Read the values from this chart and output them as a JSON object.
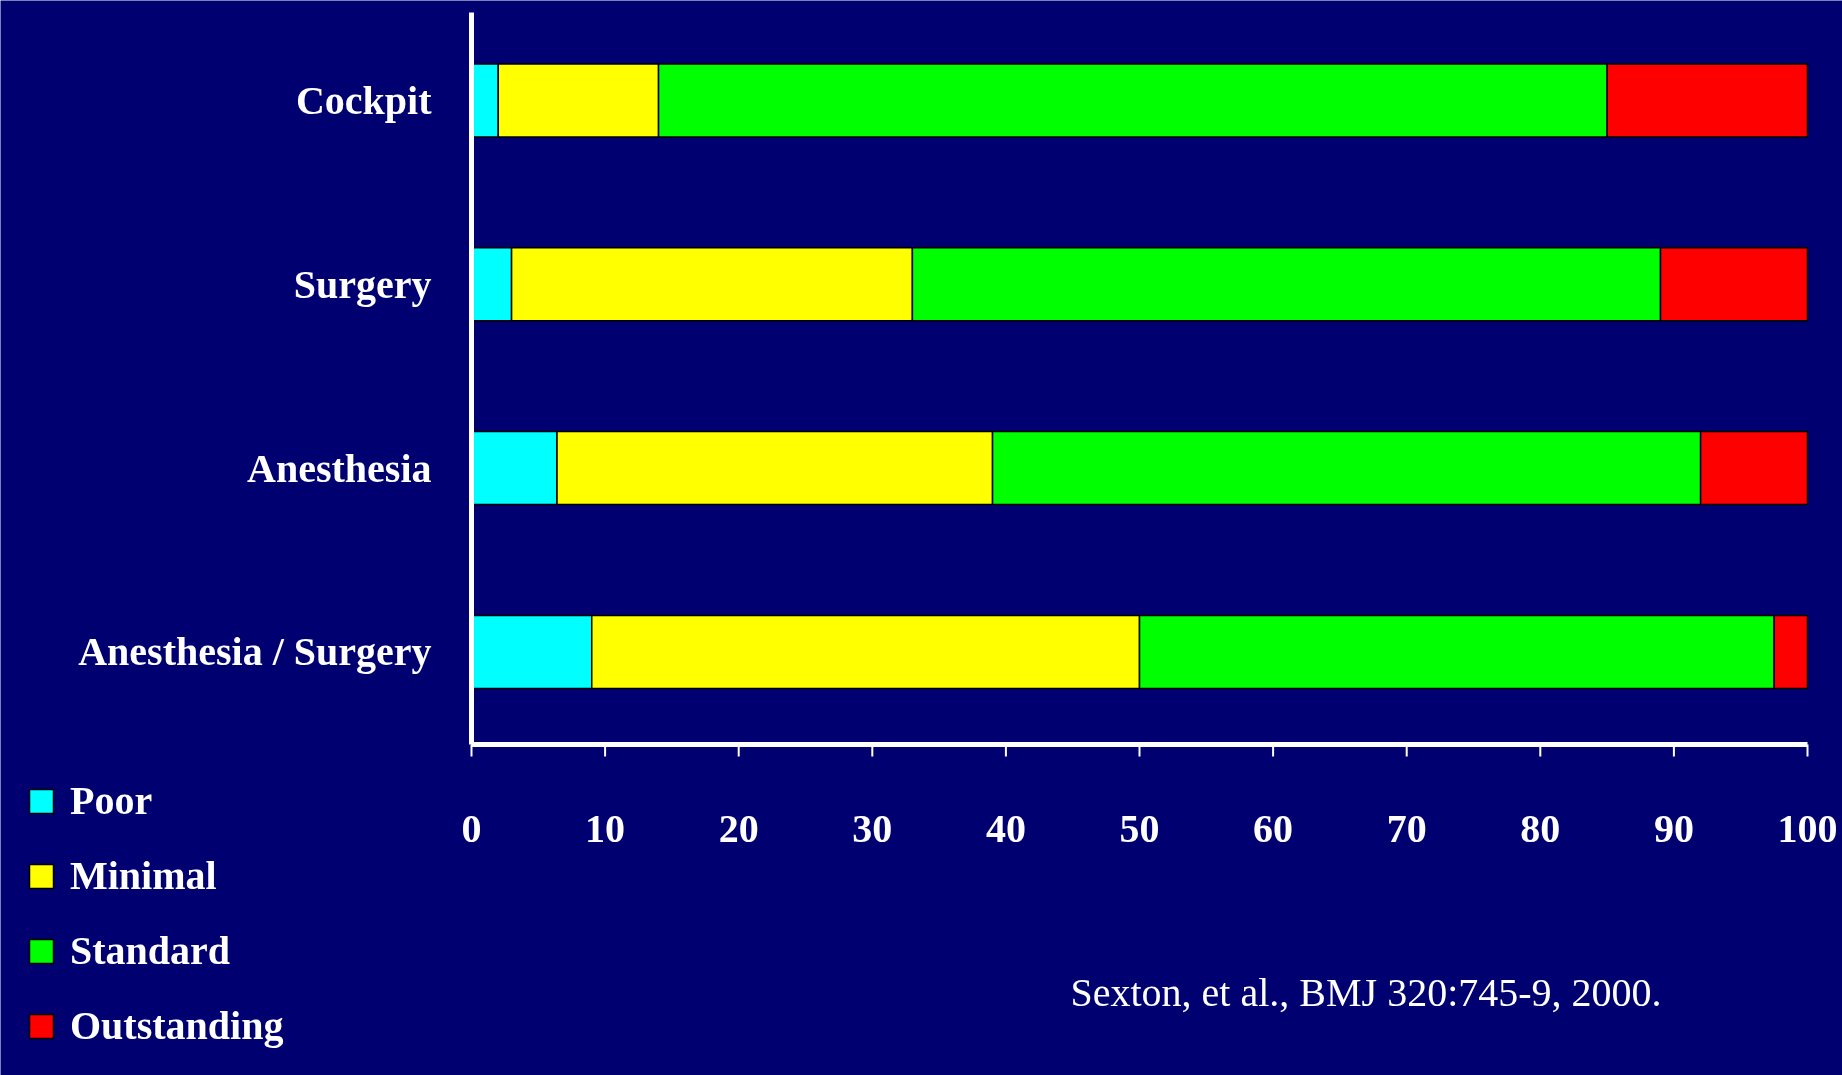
{
  "chart_data": {
    "type": "bar",
    "orientation": "horizontal",
    "stacked": true,
    "categories": [
      "Cockpit",
      "Surgery",
      "Anesthesia",
      "Anesthesia / Surgery"
    ],
    "series": [
      {
        "name": "Poor",
        "color": "#00ffff",
        "values": [
          2,
          3,
          6.4,
          9
        ]
      },
      {
        "name": "Minimal",
        "color": "#ffff00",
        "values": [
          12,
          30,
          32.6,
          41
        ]
      },
      {
        "name": "Standard",
        "color": "#00ff00",
        "values": [
          71,
          56,
          53,
          47.5
        ]
      },
      {
        "name": "Outstanding",
        "color": "#ff0000",
        "values": [
          15,
          11,
          8,
          2.5
        ]
      }
    ],
    "xlim": [
      0,
      100
    ],
    "xticks": [
      0,
      10,
      20,
      30,
      40,
      50,
      60,
      70,
      80,
      90,
      100
    ],
    "grid": false,
    "legend": "bottom left",
    "annotations": [
      "Sexton, et al., BMJ 320:745-9, 2000."
    ]
  }
}
